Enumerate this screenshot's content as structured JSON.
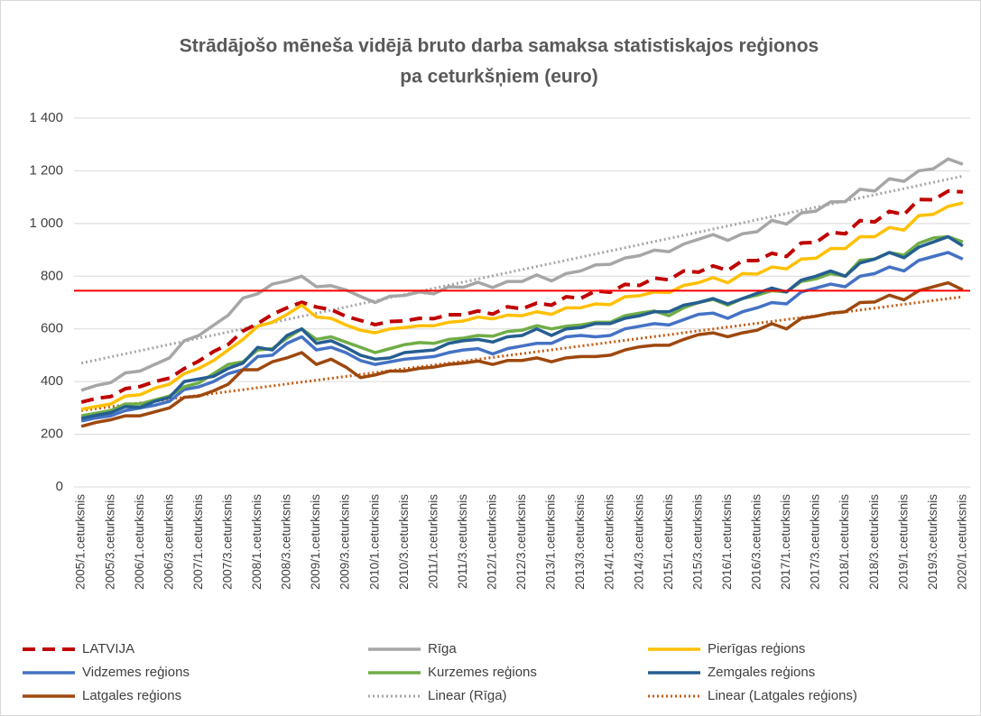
{
  "chart_data": {
    "type": "line",
    "title": [
      "Strādājošo mēneša vidējā bruto darba samaksa statistiskajos reģionos",
      "pa ceturkšņiem (euro)"
    ],
    "categories": [
      "2005/1.ceturksnis",
      null,
      "2005/3.ceturksnis",
      null,
      "2006/1.ceturksnis",
      null,
      "2006/3.ceturksnis",
      null,
      "2007/1.ceturksnis",
      null,
      "2007/3.ceturksnis",
      null,
      "2008/1.ceturksnis",
      null,
      "2008/3.ceturksnis",
      null,
      "2009/1.ceturksnis",
      null,
      "2009/3.ceturksnis",
      null,
      "2010/1.ceturksnis",
      null,
      "2010/3.ceturksnis",
      null,
      "2011/1.ceturksnis",
      null,
      "2011/3.ceturksnis",
      null,
      "2012/1.ceturksnis",
      null,
      "2012/3.ceturksnis",
      null,
      "2013/1.ceturksnis",
      null,
      "2013/3.ceturksnis",
      null,
      "2014/1.ceturksnis",
      null,
      "2014/3.ceturksnis",
      null,
      "2015/1.ceturksnis",
      null,
      "2015/3.ceturksnis",
      null,
      "2016/1.ceturksnis",
      null,
      "2016/3.ceturksnis",
      null,
      "2017/1.ceturksnis",
      null,
      "2017/3.ceturksnis",
      null,
      "2018/1.ceturksnis",
      null,
      "2018/3.ceturksnis",
      null,
      "2019/1.ceturksnis",
      null,
      "2019/3.ceturksnis",
      null,
      "2020/1.ceturksnis"
    ],
    "series": [
      {
        "name": "LATVIJA",
        "color": "#c00000",
        "dash": "dashed",
        "values": [
          322,
          336,
          343,
          373,
          381,
          400,
          413,
          449,
          478,
          514,
          541,
          592,
          620,
          655,
          680,
          701,
          683,
          673,
          648,
          632,
          616,
          628,
          630,
          640,
          639,
          654,
          654,
          668,
          656,
          684,
          676,
          698,
          690,
          722,
          716,
          744,
          739,
          769,
          765,
          793,
          786,
          820,
          815,
          839,
          822,
          859,
          859,
          887,
          875,
          926,
          928,
          967,
          961,
          1011,
          1006,
          1046,
          1034,
          1091,
          1090,
          1123,
          1120
        ]
      },
      {
        "name": "Rīga",
        "color": "#a6a6a6",
        "dash": "solid",
        "values": [
          367,
          385,
          396,
          433,
          440,
          465,
          490,
          555,
          575,
          614,
          652,
          717,
          733,
          770,
          782,
          800,
          760,
          764,
          748,
          723,
          700,
          724,
          727,
          740,
          733,
          760,
          758,
          777,
          757,
          780,
          780,
          805,
          782,
          810,
          820,
          843,
          845,
          869,
          878,
          899,
          893,
          922,
          940,
          958,
          936,
          961,
          969,
          1012,
          998,
          1040,
          1047,
          1082,
          1083,
          1130,
          1123,
          1170,
          1160,
          1200,
          1208,
          1245,
          1225
        ]
      },
      {
        "name": "Pierīgas reģions",
        "color": "#ffc000",
        "dash": "solid",
        "values": [
          295,
          305,
          315,
          345,
          350,
          375,
          390,
          430,
          450,
          480,
          520,
          560,
          610,
          625,
          655,
          690,
          645,
          640,
          615,
          595,
          585,
          600,
          605,
          612,
          612,
          625,
          630,
          645,
          638,
          652,
          650,
          665,
          655,
          680,
          680,
          695,
          692,
          722,
          726,
          740,
          738,
          765,
          775,
          795,
          775,
          810,
          808,
          835,
          828,
          865,
          868,
          905,
          905,
          950,
          950,
          985,
          975,
          1030,
          1035,
          1065,
          1078
        ]
      },
      {
        "name": "Vidzemes reģions",
        "color": "#4472c4",
        "dash": "solid",
        "values": [
          250,
          262,
          270,
          290,
          300,
          310,
          325,
          370,
          380,
          400,
          430,
          445,
          495,
          500,
          545,
          570,
          520,
          530,
          510,
          480,
          465,
          475,
          485,
          490,
          495,
          510,
          520,
          525,
          505,
          525,
          535,
          545,
          545,
          570,
          575,
          570,
          575,
          600,
          610,
          620,
          615,
          635,
          655,
          660,
          640,
          665,
          680,
          700,
          695,
          740,
          755,
          770,
          760,
          800,
          810,
          835,
          820,
          860,
          875,
          890,
          865
        ]
      },
      {
        "name": "Kurzemes reģions",
        "color": "#70ad47",
        "dash": "solid",
        "values": [
          270,
          280,
          290,
          315,
          315,
          330,
          345,
          380,
          395,
          430,
          465,
          475,
          520,
          525,
          565,
          600,
          560,
          570,
          550,
          530,
          510,
          525,
          540,
          548,
          545,
          560,
          565,
          575,
          572,
          590,
          595,
          612,
          600,
          610,
          615,
          625,
          625,
          650,
          660,
          668,
          650,
          680,
          700,
          712,
          690,
          715,
          728,
          745,
          740,
          780,
          790,
          810,
          800,
          860,
          865,
          890,
          880,
          925,
          945,
          950,
          930
        ]
      },
      {
        "name": "Zemgales reģions",
        "color": "#255e91",
        "dash": "solid",
        "values": [
          260,
          272,
          282,
          305,
          302,
          325,
          340,
          400,
          410,
          420,
          450,
          470,
          530,
          520,
          575,
          600,
          545,
          555,
          530,
          500,
          485,
          490,
          510,
          515,
          520,
          545,
          555,
          560,
          550,
          570,
          575,
          600,
          575,
          600,
          605,
          620,
          620,
          640,
          650,
          665,
          665,
          690,
          700,
          715,
          695,
          715,
          735,
          755,
          740,
          785,
          800,
          820,
          800,
          850,
          865,
          890,
          870,
          910,
          930,
          950,
          915
        ]
      },
      {
        "name": "Latgales reģions",
        "color": "#9e480e",
        "dash": "solid",
        "values": [
          230,
          245,
          255,
          270,
          270,
          285,
          300,
          340,
          345,
          365,
          390,
          445,
          445,
          475,
          490,
          510,
          465,
          485,
          455,
          415,
          425,
          440,
          440,
          450,
          455,
          465,
          470,
          478,
          465,
          480,
          480,
          490,
          475,
          490,
          495,
          495,
          500,
          520,
          532,
          538,
          538,
          560,
          578,
          585,
          570,
          585,
          595,
          620,
          600,
          640,
          648,
          660,
          665,
          700,
          702,
          728,
          710,
          745,
          760,
          775,
          748
        ]
      }
    ],
    "trendlines": [
      {
        "name": "Linear (Rīga)",
        "color": "#a6a6a6",
        "dash": "dotted",
        "values": [
          470,
          1180
        ]
      },
      {
        "name": "Linear (Latgales reģions)",
        "color": "#c55a11",
        "dash": "dotted",
        "values": [
          290,
          722
        ]
      }
    ],
    "hline": {
      "value": 745,
      "color": "#ff0000"
    },
    "ylim": [
      0,
      1400
    ],
    "yticks": [
      0,
      200,
      400,
      600,
      800,
      {
        "value": 1000,
        "label": "1 000"
      },
      {
        "value": 1200,
        "label": "1 200"
      },
      {
        "value": 1400,
        "label": "1 400"
      }
    ],
    "grid": true
  }
}
